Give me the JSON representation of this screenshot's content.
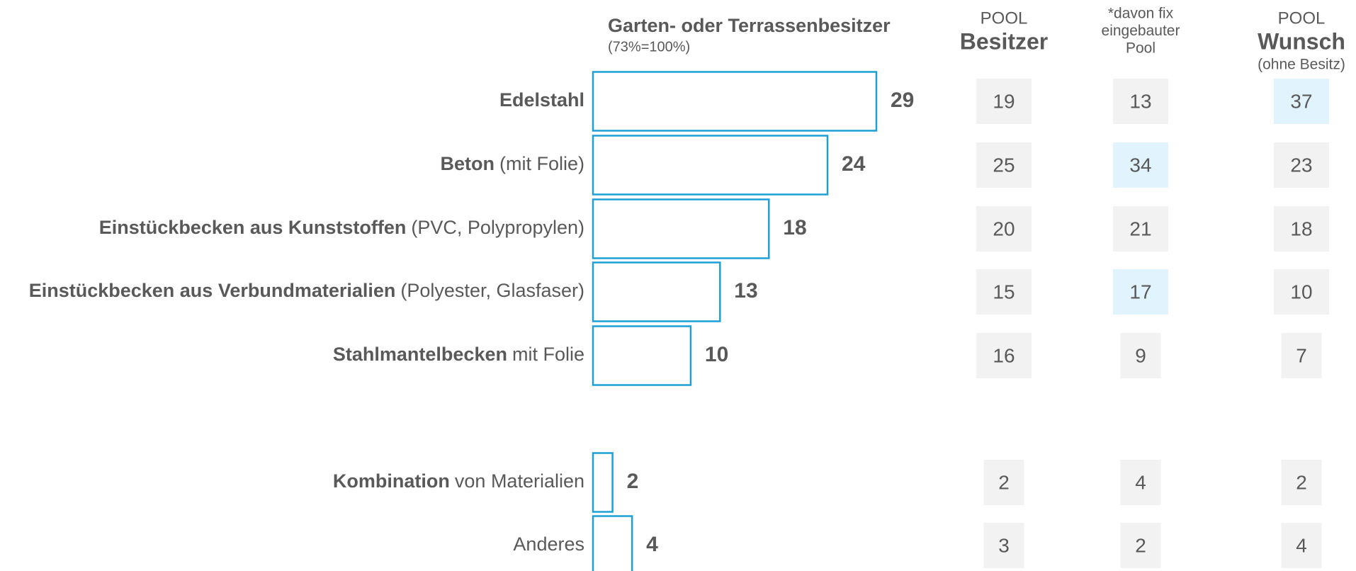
{
  "chart_data": {
    "type": "bar",
    "orientation": "horizontal",
    "title": "Garten- oder Terrassenbesitzer",
    "subtitle": "(73%=100%)",
    "categories": [
      {
        "bold": "Edelstahl"
      },
      {
        "bold": "Beton",
        "rest": "(mit Folie)"
      },
      {
        "bold": "Einstückbecken aus Kunststoffen",
        "rest": "(PVC, Polypropylen)"
      },
      {
        "bold": "Einstückbecken aus Verbundmaterialien",
        "rest": "(Polyester, Glasfaser)"
      },
      {
        "bold": "Stahlmantelbecken",
        "rest": "mit Folie"
      },
      {
        "bold": "Kombination",
        "rest": "von Materialien"
      },
      {
        "rest": "Anderes"
      }
    ],
    "values": [
      29,
      24,
      18,
      13,
      10,
      2,
      4
    ],
    "color": "#1ea0d6",
    "columns": [
      {
        "header_top": "POOL",
        "header_main": "Besitzer",
        "values": [
          19,
          25,
          20,
          15,
          16,
          2,
          3
        ],
        "highlight": []
      },
      {
        "header_note": [
          "*davon fix",
          "eingebauter",
          "Pool"
        ],
        "values": [
          13,
          34,
          21,
          17,
          9,
          4,
          2
        ],
        "highlight": [
          1,
          3
        ]
      },
      {
        "header_top": "POOL",
        "header_main": "Wunsch",
        "header_bottom": "(ohne Besitz)",
        "values": [
          37,
          23,
          18,
          10,
          7,
          2,
          4
        ],
        "highlight": [
          0
        ]
      }
    ],
    "cell_color": "#f2f2f2",
    "highlight_color": "#e1f3fc"
  }
}
